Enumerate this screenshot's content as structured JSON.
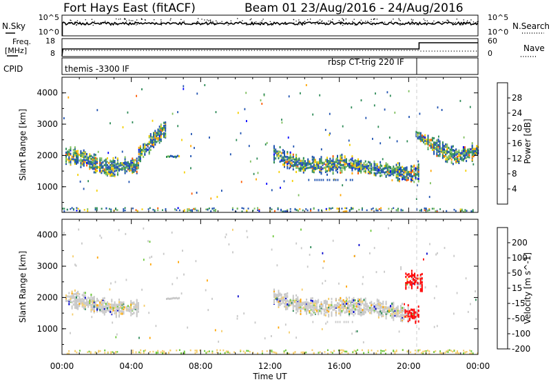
{
  "header": {
    "station": "Fort Hays East (fitACF)",
    "beam_date": "Beam 01 23/Aug/2016 - 24/Aug/2016"
  },
  "top_panels": {
    "noise": {
      "left_label": "N.Sky",
      "right_label": "N.Search",
      "left_ticks": [
        "10^5",
        "10^0"
      ],
      "right_ticks": [
        "10^5",
        "10^0"
      ]
    },
    "freq": {
      "left_label_line1": "Freq.",
      "left_label_line2": "[MHz]",
      "right_label": "Nave",
      "left_ticks": [
        "18",
        "8"
      ],
      "right_ticks": [
        "60",
        "0"
      ]
    },
    "cpid": {
      "left_label": "CPID",
      "program_1": "themis -3300 IF",
      "program_2": "rbsp CT-trig 220 IF"
    }
  },
  "colors": {
    "power_scale": [
      "#0000ff",
      "#1f52b0",
      "#2e8b57",
      "#7fbf5f",
      "#f5d000",
      "#ffa500",
      "#ff5a00",
      "#ff0000"
    ],
    "velocity_scale": [
      "#ff0000",
      "#ff6a00",
      "#ffa500",
      "#f5cd6a",
      "#c8c8c8",
      "#6ec83c",
      "#2e8b57",
      "#0000cc"
    ]
  },
  "chart_data": [
    {
      "type": "heatmap",
      "title": "Power",
      "ylabel": "Slant Range [km]",
      "ylim": [
        180,
        4500
      ],
      "y_ticks": [
        "1000",
        "2000",
        "3000",
        "4000"
      ],
      "colorbar_label": "Power [dB]",
      "colorbar_ticks": [
        "4",
        "8",
        "12",
        "16",
        "20",
        "24",
        "28"
      ],
      "grid": false,
      "series": [
        {
          "x": [
            0.2,
            0.6,
            1.0,
            1.4,
            1.8,
            2.2,
            2.6,
            3.0,
            3.4,
            3.8,
            4.2,
            4.4
          ],
          "y": [
            2000,
            2020,
            1960,
            1900,
            1780,
            1720,
            1650,
            1660,
            1680,
            1720,
            1700,
            1680
          ]
        },
        {
          "x": [
            4.4,
            4.8,
            5.2,
            5.6,
            6.0
          ],
          "y": [
            2050,
            2250,
            2500,
            2750,
            2900
          ]
        },
        {
          "x": [
            12.2,
            12.8,
            13.4,
            14.0,
            14.6,
            15.2,
            15.8,
            16.4,
            17.0,
            17.6,
            18.2,
            18.8,
            19.4,
            20.0,
            20.6
          ],
          "y": [
            2100,
            1950,
            1800,
            1700,
            1750,
            1700,
            1750,
            1800,
            1700,
            1650,
            1600,
            1550,
            1500,
            1400,
            1500
          ]
        },
        {
          "x": [
            20.4,
            21.0,
            21.6,
            22.2,
            22.8,
            23.4,
            24.0
          ],
          "y": [
            2700,
            2500,
            2300,
            2100,
            2000,
            2100,
            2200
          ]
        }
      ]
    },
    {
      "type": "heatmap",
      "title": "Velocity",
      "ylabel": "Slant Range [km]",
      "ylim": [
        180,
        4500
      ],
      "y_ticks": [
        "1000",
        "2000",
        "3000",
        "4000"
      ],
      "colorbar_label": "Velocity [m s^-1]",
      "colorbar_ticks": [
        "200",
        "100",
        "50",
        "15",
        "-15",
        "-50",
        "-100",
        "-200"
      ],
      "grid": false,
      "series": [
        {
          "x": [
            0.2,
            1.0,
            2.0,
            3.0,
            4.0,
            4.4
          ],
          "y": [
            2000,
            1950,
            1800,
            1700,
            1700,
            1700
          ]
        },
        {
          "x": [
            12.2,
            13.0,
            14.0,
            15.0,
            16.0,
            17.0,
            18.0,
            19.0,
            20.0,
            20.6
          ],
          "y": [
            2050,
            1900,
            1750,
            1700,
            1750,
            1750,
            1700,
            1600,
            1500,
            1500
          ]
        },
        {
          "x": [
            19.8,
            20.3,
            20.8
          ],
          "y": [
            2600,
            2600,
            2500
          ]
        }
      ]
    }
  ],
  "x_axis": {
    "label": "Time UT",
    "ticks": [
      "00:00",
      "04:00",
      "08:00",
      "12:00",
      "16:00",
      "20:00",
      "00:00"
    ],
    "range_hours": [
      0,
      24
    ]
  }
}
